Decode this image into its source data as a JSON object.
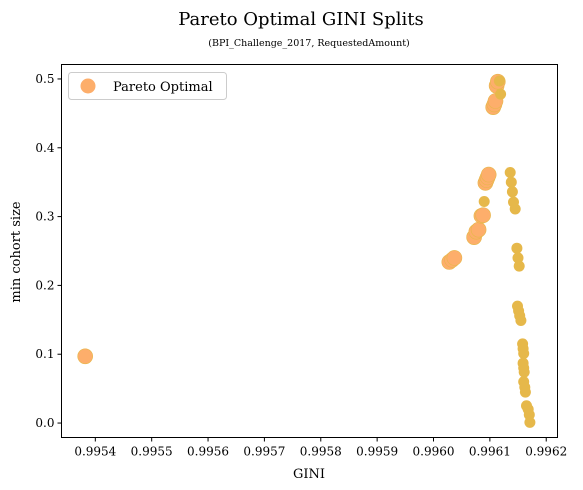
{
  "chart_data": {
    "type": "scatter",
    "title": "Pareto Optimal GINI Splits",
    "subtitle": "(BPI_Challenge_2017, RequestedAmount)",
    "xlabel": "GINI",
    "ylabel": "min cohort size",
    "xlim": [
      0.99534,
      0.99622
    ],
    "ylim": [
      -0.021,
      0.521
    ],
    "xticks": [
      0.9954,
      0.9955,
      0.9956,
      0.9957,
      0.9958,
      0.9959,
      0.996,
      0.9961,
      0.9962
    ],
    "xtick_labels": [
      "0.9954",
      "0.9955",
      "0.9956",
      "0.9957",
      "0.9958",
      "0.9959",
      "0.9960",
      "0.9961",
      "0.9962"
    ],
    "yticks": [
      0.0,
      0.1,
      0.2,
      0.3,
      0.4,
      0.5
    ],
    "ytick_labels": [
      "0.0",
      "0.1",
      "0.2",
      "0.3",
      "0.4",
      "0.5"
    ],
    "grid": false,
    "legend": {
      "placement": "top-left",
      "entries": [
        "Pareto Optimal"
      ]
    },
    "series": [
      {
        "name": "Pareto Optimal",
        "color": "#fdae6b",
        "edge_color": "#e6b84a",
        "points": [
          {
            "x": 0.995382,
            "y": 0.097,
            "big": true
          },
          {
            "x": 0.996028,
            "y": 0.234,
            "big": true
          },
          {
            "x": 0.996033,
            "y": 0.237,
            "big": true
          },
          {
            "x": 0.996037,
            "y": 0.24,
            "big": true
          },
          {
            "x": 0.996072,
            "y": 0.27,
            "big": true
          },
          {
            "x": 0.996076,
            "y": 0.278,
            "big": true
          },
          {
            "x": 0.99608,
            "y": 0.281,
            "big": true
          },
          {
            "x": 0.996085,
            "y": 0.301,
            "big": true
          },
          {
            "x": 0.996088,
            "y": 0.302,
            "big": true
          },
          {
            "x": 0.99609,
            "y": 0.322,
            "big": false
          },
          {
            "x": 0.996092,
            "y": 0.349,
            "big": true
          },
          {
            "x": 0.996094,
            "y": 0.353,
            "big": true
          },
          {
            "x": 0.996096,
            "y": 0.357,
            "big": true
          },
          {
            "x": 0.996098,
            "y": 0.361,
            "big": true
          },
          {
            "x": 0.996106,
            "y": 0.459,
            "big": true
          },
          {
            "x": 0.996108,
            "y": 0.463,
            "big": true
          },
          {
            "x": 0.99611,
            "y": 0.468,
            "big": true
          },
          {
            "x": 0.996112,
            "y": 0.49,
            "big": true
          },
          {
            "x": 0.996114,
            "y": 0.496,
            "big": true
          },
          {
            "x": 0.996117,
            "y": 0.497,
            "big": false
          },
          {
            "x": 0.996119,
            "y": 0.478,
            "big": false
          },
          {
            "x": 0.996136,
            "y": 0.364,
            "big": false
          },
          {
            "x": 0.996138,
            "y": 0.35,
            "big": false
          },
          {
            "x": 0.99614,
            "y": 0.336,
            "big": false
          },
          {
            "x": 0.996142,
            "y": 0.321,
            "big": false
          },
          {
            "x": 0.996145,
            "y": 0.311,
            "big": false
          },
          {
            "x": 0.996148,
            "y": 0.254,
            "big": false
          },
          {
            "x": 0.99615,
            "y": 0.24,
            "big": false
          },
          {
            "x": 0.996152,
            "y": 0.228,
            "big": false
          },
          {
            "x": 0.996149,
            "y": 0.17,
            "big": false
          },
          {
            "x": 0.996151,
            "y": 0.163,
            "big": false
          },
          {
            "x": 0.996153,
            "y": 0.156,
            "big": false
          },
          {
            "x": 0.996155,
            "y": 0.149,
            "big": false
          },
          {
            "x": 0.996158,
            "y": 0.115,
            "big": false
          },
          {
            "x": 0.996159,
            "y": 0.108,
            "big": false
          },
          {
            "x": 0.99616,
            "y": 0.101,
            "big": false
          },
          {
            "x": 0.996159,
            "y": 0.087,
            "big": false
          },
          {
            "x": 0.99616,
            "y": 0.08,
            "big": false
          },
          {
            "x": 0.996161,
            "y": 0.074,
            "big": false
          },
          {
            "x": 0.99616,
            "y": 0.06,
            "big": false
          },
          {
            "x": 0.996162,
            "y": 0.052,
            "big": false
          },
          {
            "x": 0.996163,
            "y": 0.045,
            "big": false
          },
          {
            "x": 0.996165,
            "y": 0.025,
            "big": false
          },
          {
            "x": 0.996168,
            "y": 0.02,
            "big": false
          },
          {
            "x": 0.99617,
            "y": 0.012,
            "big": false
          },
          {
            "x": 0.996171,
            "y": 0.001,
            "big": false
          }
        ]
      }
    ]
  }
}
